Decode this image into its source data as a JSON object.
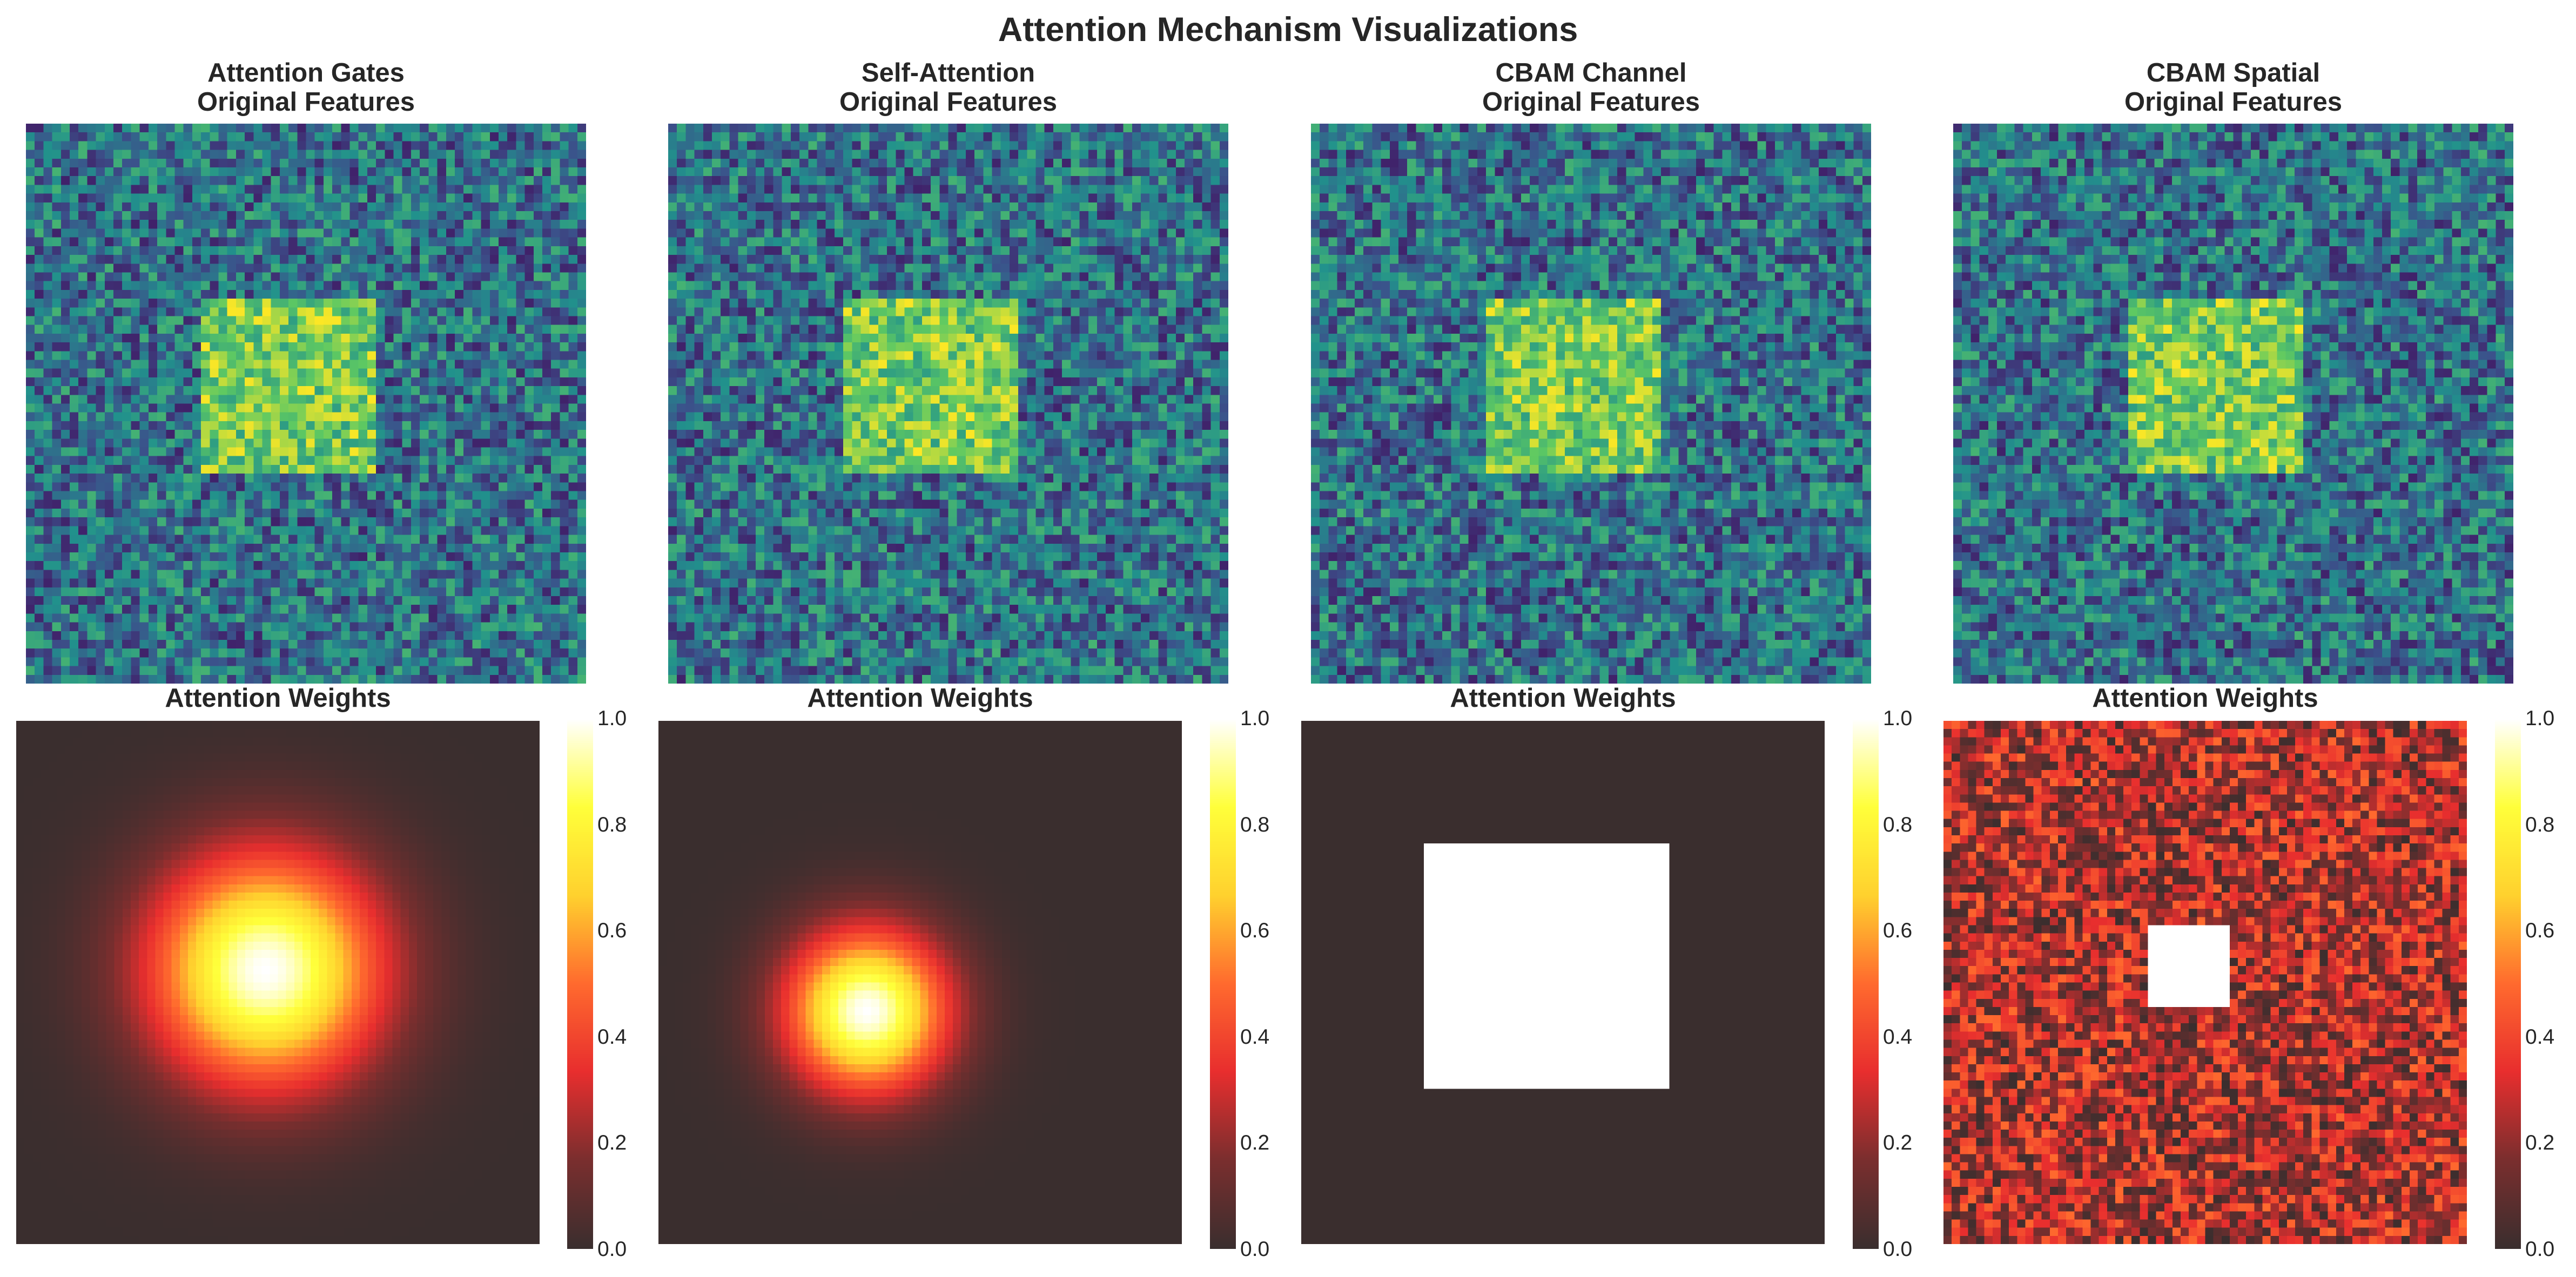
{
  "figure": {
    "title": "Attention Mechanism Visualizations"
  },
  "panels": [
    {
      "name": "Attention Gates",
      "top_title": "Original Features",
      "bottom_title": "Attention Weights"
    },
    {
      "name": "Self-Attention",
      "top_title": "Original Features",
      "bottom_title": "Attention Weights"
    },
    {
      "name": "CBAM Channel",
      "top_title": "Original Features",
      "bottom_title": "Attention Weights"
    },
    {
      "name": "CBAM Spatial",
      "top_title": "Original Features",
      "bottom_title": "Attention Weights"
    }
  ],
  "colorbar": {
    "ticks": [
      "1.0",
      "0.8",
      "0.6",
      "0.4",
      "0.2",
      "0.0"
    ]
  },
  "colors": {
    "viridis": [
      "#440154",
      "#3b528b",
      "#21918c",
      "#5ec962",
      "#fde725"
    ],
    "hot": [
      "#3a2e2e",
      "#7a2e2e",
      "#e82e2e",
      "#ff6a2e",
      "#ffd12e",
      "#ffff3a",
      "#ffffff"
    ]
  },
  "chart_data": [
    {
      "type": "heatmap",
      "title": "Attention Gates\nOriginal Features",
      "grid": [
        64,
        64
      ],
      "colormap": "viridis",
      "description_values": {
        "background": "noise",
        "bright_square_rows": [
          20,
          40
        ],
        "bright_square_cols": [
          20,
          40
        ]
      }
    },
    {
      "type": "heatmap",
      "title": "Self-Attention\nOriginal Features",
      "grid": [
        64,
        64
      ],
      "colormap": "viridis",
      "description_values": {
        "bright_square_rows": [
          20,
          40
        ],
        "bright_square_cols": [
          20,
          40
        ]
      }
    },
    {
      "type": "heatmap",
      "title": "CBAM Channel\nOriginal Features",
      "grid": [
        64,
        64
      ],
      "colormap": "viridis",
      "description_values": {
        "bright_square_rows": [
          20,
          40
        ],
        "bright_square_cols": [
          20,
          40
        ]
      }
    },
    {
      "type": "heatmap",
      "title": "CBAM Spatial\nOriginal Features",
      "grid": [
        64,
        64
      ],
      "colormap": "viridis",
      "description_values": {
        "bright_square_rows": [
          20,
          40
        ],
        "bright_square_cols": [
          20,
          40
        ]
      }
    },
    {
      "type": "heatmap",
      "title": "Attention Weights",
      "grid": [
        64,
        64
      ],
      "colormap": "hot",
      "vmin": 0.0,
      "vmax": 1.0,
      "pattern": "gaussian",
      "center": [
        30,
        30
      ],
      "sigma": 10
    },
    {
      "type": "heatmap",
      "title": "Attention Weights",
      "grid": [
        64,
        64
      ],
      "colormap": "hot",
      "vmin": 0.0,
      "vmax": 1.0,
      "pattern": "gaussian",
      "center": [
        35,
        25
      ],
      "sigma": 7
    },
    {
      "type": "heatmap",
      "title": "Attention Weights",
      "grid": [
        64,
        64
      ],
      "colormap": "hot",
      "vmin": 0.0,
      "vmax": 1.0,
      "pattern": "square",
      "rows": [
        15,
        45
      ],
      "cols": [
        15,
        45
      ],
      "inside": 1.0,
      "outside": 0.0
    },
    {
      "type": "heatmap",
      "title": "Attention Weights",
      "grid": [
        64,
        64
      ],
      "colormap": "hot",
      "vmin": 0.0,
      "vmax": 1.0,
      "pattern": "noise_with_square",
      "rows": [
        25,
        35
      ],
      "cols": [
        25,
        35
      ],
      "inside": 1.0,
      "noise_range": [
        0.0,
        0.5
      ]
    }
  ]
}
